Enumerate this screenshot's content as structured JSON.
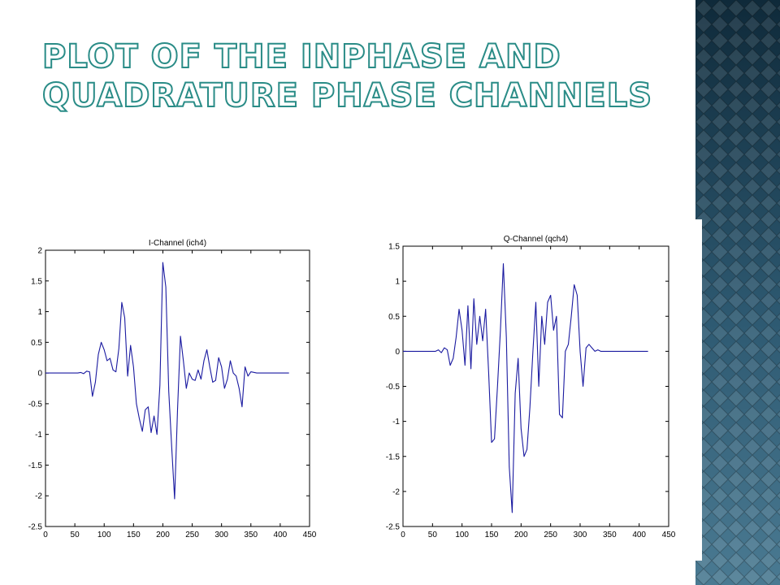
{
  "slide": {
    "title_line1": "Plot of the inphase and",
    "title_line2": "quadrature phase channels"
  },
  "chart_data": [
    {
      "type": "line",
      "title": "I-Channel (ich4)",
      "xlabel": "",
      "ylabel": "",
      "xlim": [
        0,
        450
      ],
      "ylim": [
        -2.5,
        2
      ],
      "xticks": [
        0,
        50,
        100,
        150,
        200,
        250,
        300,
        350,
        400,
        450
      ],
      "yticks": [
        -2.5,
        -2,
        -1.5,
        -1,
        -0.5,
        0,
        0.5,
        1,
        1.5,
        2
      ],
      "grid": false,
      "line_color": "#1a1aa0",
      "series": [
        {
          "x": [
            0,
            20,
            40,
            55,
            60,
            65,
            70,
            75,
            80,
            85,
            90,
            95,
            100,
            105,
            110,
            115,
            120,
            125,
            130,
            135,
            140,
            145,
            150,
            155,
            160,
            165,
            170,
            175,
            180,
            185,
            190,
            195,
            200,
            205,
            210,
            215,
            220,
            225,
            230,
            235,
            240,
            245,
            250,
            255,
            260,
            265,
            270,
            275,
            280,
            285,
            290,
            295,
            300,
            305,
            310,
            315,
            320,
            325,
            330,
            335,
            340,
            345,
            350,
            360,
            380,
            400,
            415
          ],
          "y": [
            0,
            0,
            0,
            0,
            0.01,
            -0.01,
            0.03,
            0.02,
            -0.38,
            -0.15,
            0.3,
            0.5,
            0.38,
            0.2,
            0.24,
            0.05,
            0.02,
            0.4,
            1.15,
            0.9,
            -0.05,
            0.45,
            0.1,
            -0.5,
            -0.75,
            -0.95,
            -0.6,
            -0.55,
            -0.97,
            -0.7,
            -1.0,
            -0.2,
            1.8,
            1.4,
            -0.3,
            -1.2,
            -2.05,
            -0.6,
            0.6,
            0.2,
            -0.25,
            0.0,
            -0.1,
            -0.12,
            0.05,
            -0.1,
            0.2,
            0.38,
            0.1,
            -0.15,
            -0.12,
            0.25,
            0.1,
            -0.25,
            -0.1,
            0.2,
            0.0,
            -0.05,
            -0.25,
            -0.55,
            0.1,
            -0.05,
            0.02,
            0,
            0,
            0,
            0
          ]
        }
      ]
    },
    {
      "type": "line",
      "title": "Q-Channel (qch4)",
      "xlabel": "",
      "ylabel": "",
      "xlim": [
        0,
        450
      ],
      "ylim": [
        -2.5,
        1.5
      ],
      "xticks": [
        0,
        50,
        100,
        150,
        200,
        250,
        300,
        350,
        400,
        450
      ],
      "yticks": [
        -2.5,
        -2,
        -1.5,
        -1,
        -0.5,
        0,
        0.5,
        1,
        1.5
      ],
      "grid": false,
      "line_color": "#1a1aa0",
      "series": [
        {
          "x": [
            0,
            20,
            40,
            55,
            60,
            65,
            70,
            75,
            80,
            85,
            90,
            95,
            100,
            105,
            110,
            115,
            120,
            125,
            130,
            135,
            140,
            145,
            150,
            155,
            160,
            165,
            170,
            175,
            180,
            185,
            190,
            195,
            200,
            205,
            210,
            215,
            220,
            225,
            230,
            235,
            240,
            245,
            250,
            255,
            260,
            265,
            270,
            275,
            280,
            285,
            290,
            295,
            300,
            305,
            310,
            315,
            320,
            325,
            330,
            335,
            340,
            345,
            350,
            360,
            380,
            400,
            415
          ],
          "y": [
            0,
            0,
            0,
            0,
            0.02,
            -0.02,
            0.05,
            0.02,
            -0.2,
            -0.1,
            0.2,
            0.6,
            0.3,
            -0.2,
            0.65,
            -0.25,
            0.75,
            0.1,
            0.5,
            0.15,
            0.6,
            -0.3,
            -1.3,
            -1.25,
            -0.5,
            0.3,
            1.25,
            0.2,
            -1.65,
            -2.3,
            -0.6,
            -0.1,
            -1.1,
            -1.5,
            -1.4,
            -0.8,
            0.0,
            0.7,
            -0.5,
            0.5,
            0.1,
            0.7,
            0.8,
            0.3,
            0.5,
            -0.9,
            -0.95,
            0.0,
            0.1,
            0.5,
            0.95,
            0.8,
            0.0,
            -0.5,
            0.05,
            0.1,
            0.05,
            0.0,
            0.02,
            0,
            0,
            0,
            0,
            0,
            0,
            0,
            0
          ]
        }
      ]
    }
  ]
}
